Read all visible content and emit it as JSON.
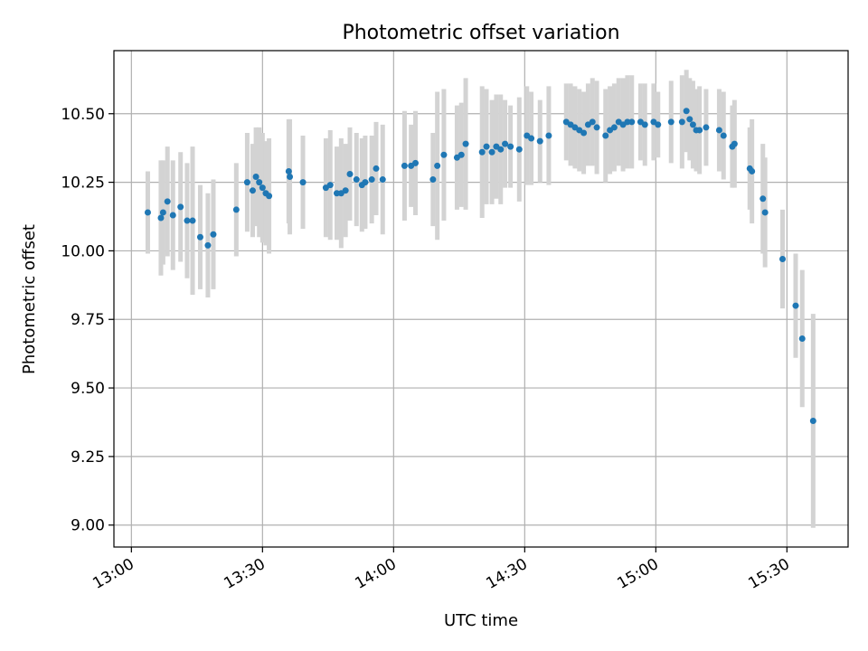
{
  "chart_data": {
    "type": "scatter",
    "title": "Photometric offset variation",
    "xlabel": "UTC time",
    "ylabel": "Photometric offset",
    "x_tick_labels": [
      "13:00",
      "13:30",
      "14:00",
      "14:30",
      "15:00",
      "15:30"
    ],
    "y_tick_labels": [
      "9.00",
      "9.25",
      "9.50",
      "9.75",
      "10.00",
      "10.25",
      "10.50"
    ],
    "xlim": [
      "12:56",
      "15:44"
    ],
    "ylim": [
      8.92,
      10.73
    ],
    "grid": true,
    "colors": {
      "marker": "#1f77b4",
      "errorbar": "#d3d3d3",
      "grid": "#b0b0b0"
    },
    "series": [
      {
        "x": [
          "13:03:45",
          "13:06:45",
          "13:07:15",
          "13:08:15",
          "13:09:30",
          "13:11:15",
          "13:12:45",
          "13:14:00",
          "13:15:45",
          "13:17:30",
          "13:18:45",
          "13:24:00",
          "13:26:30",
          "13:27:45",
          "13:28:30",
          "13:29:15",
          "13:30:00",
          "13:30:45",
          "13:31:30",
          "13:36:00",
          "13:36:15",
          "13:39:15",
          "13:44:30",
          "13:45:30",
          "13:47:00",
          "13:48:00",
          "13:49:00",
          "13:50:00",
          "13:51:30",
          "13:52:45",
          "13:53:30",
          "13:55:00",
          "13:56:00",
          "13:57:30",
          "14:02:30",
          "14:04:00",
          "14:05:00",
          "14:09:00",
          "14:10:00",
          "14:11:30",
          "14:14:30",
          "14:15:30",
          "14:16:30",
          "14:20:15",
          "14:21:15",
          "14:22:30",
          "14:23:30",
          "14:24:30",
          "14:25:30",
          "14:26:45",
          "14:28:45",
          "14:30:30",
          "14:31:30",
          "14:33:30",
          "14:35:30",
          "14:39:30",
          "14:40:30",
          "14:41:30",
          "14:42:30",
          "14:43:30",
          "14:44:30",
          "14:45:30",
          "14:46:30",
          "14:48:30",
          "14:49:30",
          "14:50:30",
          "14:51:30",
          "14:52:30",
          "14:53:30",
          "14:54:30",
          "14:56:30",
          "14:57:30",
          "14:59:30",
          "15:00:30",
          "15:03:30",
          "15:06:00",
          "15:07:00",
          "15:07:45",
          "15:08:30",
          "15:09:15",
          "15:10:00",
          "15:11:30",
          "15:14:30",
          "15:15:30",
          "15:17:30",
          "15:18:00",
          "15:21:30",
          "15:22:00",
          "15:24:30",
          "15:25:00",
          "15:29:00",
          "15:32:00",
          "15:33:30",
          "15:36:00"
        ],
        "y": [
          10.14,
          10.12,
          10.14,
          10.18,
          10.13,
          10.16,
          10.11,
          10.11,
          10.05,
          10.02,
          10.06,
          10.15,
          10.25,
          10.22,
          10.27,
          10.25,
          10.23,
          10.21,
          10.2,
          10.29,
          10.27,
          10.25,
          10.23,
          10.24,
          10.21,
          10.21,
          10.22,
          10.28,
          10.26,
          10.24,
          10.25,
          10.26,
          10.3,
          10.26,
          10.31,
          10.31,
          10.32,
          10.26,
          10.31,
          10.35,
          10.34,
          10.35,
          10.39,
          10.36,
          10.38,
          10.36,
          10.38,
          10.37,
          10.39,
          10.38,
          10.37,
          10.42,
          10.41,
          10.4,
          10.42,
          10.47,
          10.46,
          10.45,
          10.44,
          10.43,
          10.46,
          10.47,
          10.45,
          10.42,
          10.44,
          10.45,
          10.47,
          10.46,
          10.47,
          10.47,
          10.47,
          10.46,
          10.47,
          10.46,
          10.47,
          10.47,
          10.51,
          10.48,
          10.46,
          10.44,
          10.44,
          10.45,
          10.44,
          10.42,
          10.38,
          10.39,
          10.3,
          10.29,
          10.19,
          10.14,
          9.97,
          9.8,
          9.68,
          9.38
        ],
        "error": [
          0.15,
          0.21,
          0.19,
          0.2,
          0.2,
          0.2,
          0.21,
          0.27,
          0.19,
          0.19,
          0.2,
          0.17,
          0.18,
          0.17,
          0.18,
          0.2,
          0.2,
          0.19,
          0.21,
          0.19,
          0.21,
          0.17,
          0.18,
          0.2,
          0.17,
          0.2,
          0.17,
          0.17,
          0.17,
          0.17,
          0.17,
          0.16,
          0.17,
          0.2,
          0.2,
          0.15,
          0.19,
          0.17,
          0.27,
          0.24,
          0.19,
          0.19,
          0.24,
          0.24,
          0.21,
          0.19,
          0.19,
          0.2,
          0.16,
          0.15,
          0.19,
          0.18,
          0.17,
          0.15,
          0.18,
          0.14,
          0.15,
          0.15,
          0.15,
          0.15,
          0.15,
          0.16,
          0.17,
          0.17,
          0.16,
          0.16,
          0.16,
          0.17,
          0.17,
          0.17,
          0.14,
          0.15,
          0.14,
          0.12,
          0.15,
          0.17,
          0.15,
          0.15,
          0.16,
          0.15,
          0.16,
          0.14,
          0.15,
          0.16,
          0.15,
          0.16,
          0.15,
          0.19,
          0.2,
          0.2,
          0.18,
          0.19,
          0.25,
          0.39
        ]
      }
    ]
  }
}
